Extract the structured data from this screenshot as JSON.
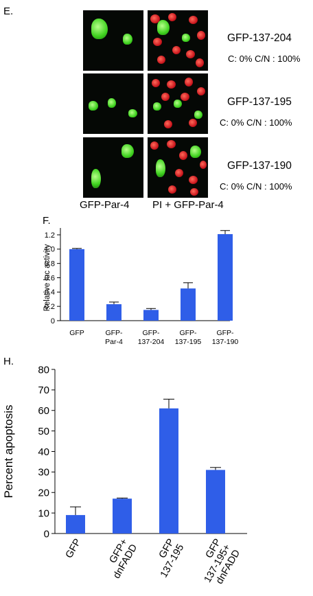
{
  "panelE": {
    "letter": "E.",
    "rows": [
      {
        "construct": "GFP-137-204",
        "localization": "C: 0% C/N : 100%"
      },
      {
        "construct": "GFP-137-195",
        "localization": "C: 0% C/N : 100%"
      },
      {
        "construct": "GFP-137-190",
        "localization": "C: 0% C/N : 100%"
      }
    ],
    "column_labels": [
      "GFP-Par-4",
      "PI + GFP-Par-4"
    ]
  },
  "colors": {
    "bar": "#2f5ee8",
    "green_channel": "#3fd21f",
    "red_channel": "#c8141c"
  },
  "chart_data": [
    {
      "panel": "F.",
      "type": "bar",
      "categories": [
        [
          "GFP"
        ],
        [
          "GFP-",
          "Par-4"
        ],
        [
          "GFP-",
          "137-204"
        ],
        [
          "GFP-",
          "137-195"
        ],
        [
          "GFP-",
          "137-190"
        ]
      ],
      "values": [
        1.0,
        0.23,
        0.15,
        0.45,
        1.21
      ],
      "errors": [
        0.01,
        0.03,
        0.02,
        0.08,
        0.05
      ],
      "ylabel": "Relative luc activity",
      "ylim": [
        0,
        1.2
      ],
      "yticks": [
        "0",
        "0.2",
        "0.4",
        "0.6",
        "0.8",
        "1.0",
        "1.2"
      ]
    },
    {
      "panel": "H.",
      "type": "bar",
      "categories": [
        [
          "GFP"
        ],
        [
          "GFP+",
          "dnFADD"
        ],
        [
          "GFP",
          "137-195"
        ],
        [
          "GFP",
          "137-195+",
          "dnFADD"
        ]
      ],
      "values": [
        9,
        17,
        61,
        31
      ],
      "errors": [
        4,
        0.3,
        4.5,
        1.2
      ],
      "ylabel": "Percent apoptosis",
      "ylim": [
        0,
        80
      ],
      "yticks": [
        "0",
        "10",
        "20",
        "30",
        "40",
        "50",
        "60",
        "70",
        "80"
      ]
    }
  ]
}
